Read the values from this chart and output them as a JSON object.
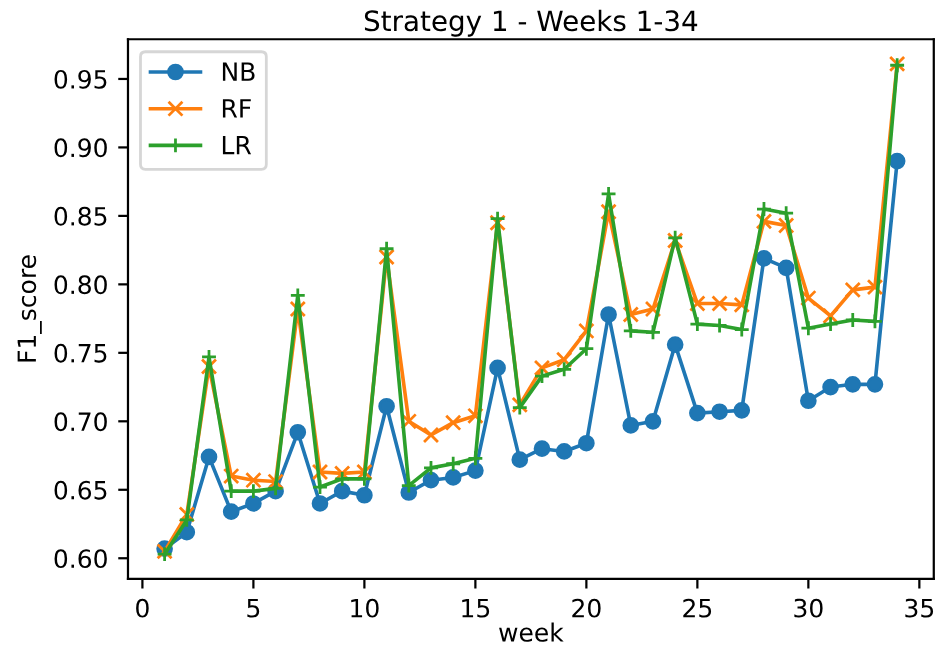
{
  "chart_data": {
    "type": "line",
    "title": "Strategy 1 - Weeks 1-34",
    "xlabel": "week",
    "ylabel": "F1_score",
    "x": [
      1,
      2,
      3,
      4,
      5,
      6,
      7,
      8,
      9,
      10,
      11,
      12,
      13,
      14,
      15,
      16,
      17,
      18,
      19,
      20,
      21,
      22,
      23,
      24,
      25,
      26,
      27,
      28,
      29,
      30,
      31,
      32,
      33,
      34
    ],
    "series": [
      {
        "name": "NB",
        "color": "#1f77b4",
        "marker": "circle",
        "values": [
          0.607,
          0.619,
          0.674,
          0.634,
          0.64,
          0.649,
          0.692,
          0.64,
          0.649,
          0.646,
          0.711,
          0.648,
          0.657,
          0.659,
          0.664,
          0.739,
          0.672,
          0.68,
          0.678,
          0.684,
          0.778,
          0.697,
          0.7,
          0.756,
          0.706,
          0.707,
          0.708,
          0.819,
          0.812,
          0.715,
          0.725,
          0.727,
          0.727,
          0.89
        ]
      },
      {
        "name": "RF",
        "color": "#ff7f0e",
        "marker": "cross",
        "values": [
          0.605,
          0.632,
          0.74,
          0.66,
          0.657,
          0.656,
          0.782,
          0.663,
          0.662,
          0.663,
          0.82,
          0.7,
          0.69,
          0.699,
          0.704,
          0.845,
          0.712,
          0.739,
          0.745,
          0.766,
          0.853,
          0.778,
          0.782,
          0.832,
          0.786,
          0.786,
          0.785,
          0.846,
          0.843,
          0.79,
          0.777,
          0.796,
          0.798,
          0.961
        ]
      },
      {
        "name": "LR",
        "color": "#2ca02c",
        "marker": "plus",
        "values": [
          0.603,
          0.628,
          0.747,
          0.649,
          0.649,
          0.651,
          0.792,
          0.652,
          0.658,
          0.658,
          0.826,
          0.653,
          0.666,
          0.669,
          0.673,
          0.848,
          0.71,
          0.733,
          0.738,
          0.753,
          0.866,
          0.766,
          0.765,
          0.834,
          0.771,
          0.77,
          0.767,
          0.855,
          0.852,
          0.768,
          0.771,
          0.774,
          0.773,
          0.96
        ]
      }
    ],
    "xlim": [
      -0.65,
      35.65
    ],
    "ylim": [
      0.585,
      0.979
    ],
    "xticks": [
      0,
      5,
      10,
      15,
      20,
      25,
      30,
      35
    ],
    "yticks": [
      {
        "value": 0.6,
        "label": "0.60"
      },
      {
        "value": 0.65,
        "label": "0.65"
      },
      {
        "value": 0.7,
        "label": "0.70"
      },
      {
        "value": 0.75,
        "label": "0.75"
      },
      {
        "value": 0.8,
        "label": "0.80"
      },
      {
        "value": 0.85,
        "label": "0.85"
      },
      {
        "value": 0.9,
        "label": "0.90"
      },
      {
        "value": 0.95,
        "label": "0.95"
      }
    ],
    "grid": false,
    "legend": "top left",
    "line_style": "solid"
  }
}
